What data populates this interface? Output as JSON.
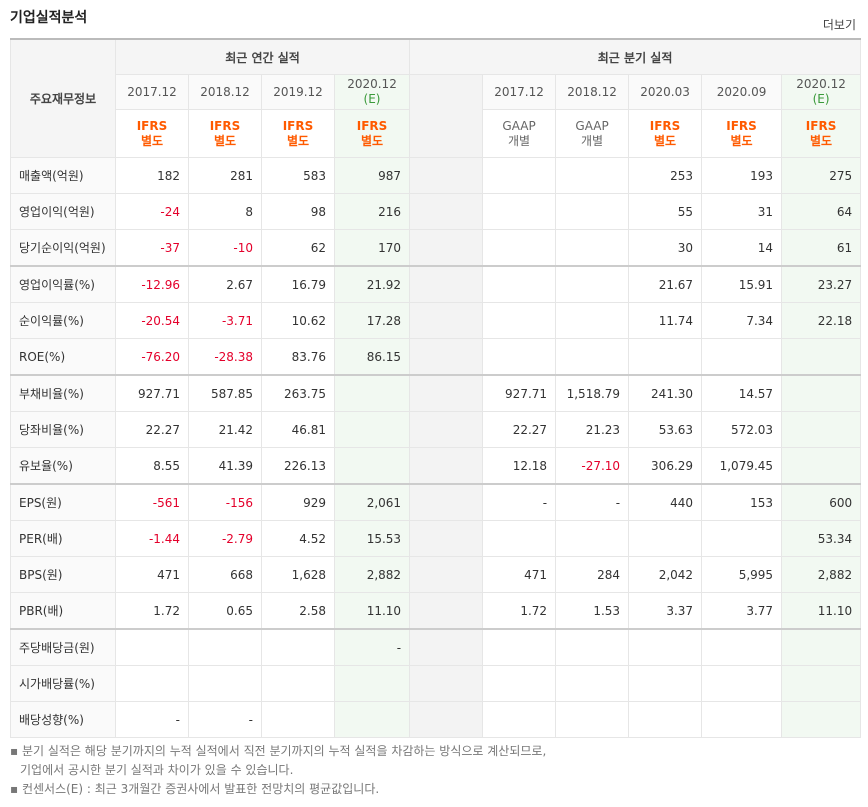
{
  "title": "기업실적분석",
  "more_label": "더보기",
  "header": {
    "row_label": "주요재무정보",
    "annual_label": "최근 연간 실적",
    "quarter_label": "최근 분기 실적",
    "annual_periods": [
      "2017.12",
      "2018.12",
      "2019.12",
      "2020.12"
    ],
    "annual_est_suffix": "(E)",
    "quarter_periods": [
      "2017.12",
      "2018.12",
      "2020.03",
      "2020.09",
      "2020.12"
    ],
    "quarter_est_suffix": "(E)",
    "annual_basis": [
      [
        "IFRS",
        "별도"
      ],
      [
        "IFRS",
        "별도"
      ],
      [
        "IFRS",
        "별도"
      ],
      [
        "IFRS",
        "별도"
      ]
    ],
    "quarter_basis": [
      [
        "GAAP",
        "개별"
      ],
      [
        "GAAP",
        "개별"
      ],
      [
        "IFRS",
        "별도"
      ],
      [
        "IFRS",
        "별도"
      ],
      [
        "IFRS",
        "별도"
      ]
    ]
  },
  "rows": [
    {
      "label": "매출액(억원)",
      "annual": [
        "182",
        "281",
        "583",
        "987"
      ],
      "quarter": [
        "",
        "",
        "253",
        "193",
        "275"
      ]
    },
    {
      "label": "영업이익(억원)",
      "annual": [
        "-24",
        "8",
        "98",
        "216"
      ],
      "quarter": [
        "",
        "",
        "55",
        "31",
        "64"
      ]
    },
    {
      "label": "당기순이익(억원)",
      "annual": [
        "-37",
        "-10",
        "62",
        "170"
      ],
      "quarter": [
        "",
        "",
        "30",
        "14",
        "61"
      ]
    },
    {
      "label": "영업이익률(%)",
      "annual": [
        "-12.96",
        "2.67",
        "16.79",
        "21.92"
      ],
      "quarter": [
        "",
        "",
        "21.67",
        "15.91",
        "23.27"
      ]
    },
    {
      "label": "순이익률(%)",
      "annual": [
        "-20.54",
        "-3.71",
        "10.62",
        "17.28"
      ],
      "quarter": [
        "",
        "",
        "11.74",
        "7.34",
        "22.18"
      ]
    },
    {
      "label": "ROE(%)",
      "annual": [
        "-76.20",
        "-28.38",
        "83.76",
        "86.15"
      ],
      "quarter": [
        "",
        "",
        "",
        "",
        ""
      ]
    },
    {
      "label": "부채비율(%)",
      "annual": [
        "927.71",
        "587.85",
        "263.75",
        ""
      ],
      "quarter": [
        "927.71",
        "1,518.79",
        "241.30",
        "14.57",
        ""
      ]
    },
    {
      "label": "당좌비율(%)",
      "annual": [
        "22.27",
        "21.42",
        "46.81",
        ""
      ],
      "quarter": [
        "22.27",
        "21.23",
        "53.63",
        "572.03",
        ""
      ]
    },
    {
      "label": "유보율(%)",
      "annual": [
        "8.55",
        "41.39",
        "226.13",
        ""
      ],
      "quarter": [
        "12.18",
        "-27.10",
        "306.29",
        "1,079.45",
        ""
      ]
    },
    {
      "label": "EPS(원)",
      "annual": [
        "-561",
        "-156",
        "929",
        "2,061"
      ],
      "quarter": [
        "-",
        "-",
        "440",
        "153",
        "600"
      ]
    },
    {
      "label": "PER(배)",
      "annual": [
        "-1.44",
        "-2.79",
        "4.52",
        "15.53"
      ],
      "quarter": [
        "",
        "",
        "",
        "",
        "53.34"
      ]
    },
    {
      "label": "BPS(원)",
      "annual": [
        "471",
        "668",
        "1,628",
        "2,882"
      ],
      "quarter": [
        "471",
        "284",
        "2,042",
        "5,995",
        "2,882"
      ]
    },
    {
      "label": "PBR(배)",
      "annual": [
        "1.72",
        "0.65",
        "2.58",
        "11.10"
      ],
      "quarter": [
        "1.72",
        "1.53",
        "3.37",
        "3.77",
        "11.10"
      ]
    },
    {
      "label": "주당배당금(원)",
      "annual": [
        "",
        "",
        "",
        "-"
      ],
      "quarter": [
        "",
        "",
        "",
        "",
        ""
      ]
    },
    {
      "label": "시가배당률(%)",
      "annual": [
        "",
        "",
        "",
        ""
      ],
      "quarter": [
        "",
        "",
        "",
        "",
        ""
      ]
    },
    {
      "label": "배당성향(%)",
      "annual": [
        "-",
        "-",
        "",
        ""
      ],
      "quarter": [
        "",
        "",
        "",
        "",
        ""
      ]
    }
  ],
  "notes": [
    "분기 실적은 해당 분기까지의 누적 실적에서 직전 분기까지의 누적 실적을 차감하는 방식으로 계산되므로,",
    "기업에서 공시한 분기 실적과 차이가 있을 수 있습니다.",
    "컨센서스(E) : 최근 3개월간 증권사에서 발표한 전망치의 평균값입니다."
  ],
  "colors": {
    "negative": "#e4002b",
    "ifrs": "#ff5a00",
    "estimate_bg": "#f2f9f2"
  }
}
